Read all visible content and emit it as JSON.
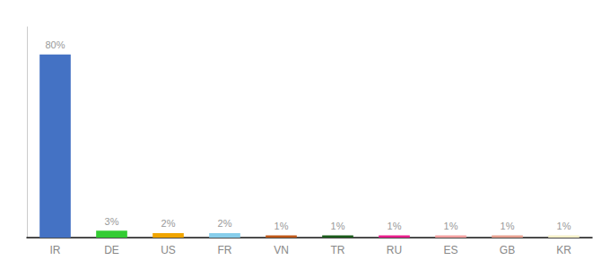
{
  "chart_data": {
    "type": "bar",
    "categories": [
      "IR",
      "DE",
      "US",
      "FR",
      "VN",
      "TR",
      "RU",
      "ES",
      "GB",
      "KR"
    ],
    "values": [
      80,
      3,
      2,
      2,
      1,
      1,
      1,
      1,
      1,
      1
    ],
    "value_labels": [
      "80%",
      "3%",
      "2%",
      "2%",
      "1%",
      "1%",
      "1%",
      "1%",
      "1%",
      "1%"
    ],
    "colors": [
      "#4472c4",
      "#33cc33",
      "#f0a500",
      "#87ceeb",
      "#c05818",
      "#1a5c1a",
      "#e91e8c",
      "#f4a0a0",
      "#e8a090",
      "#f5f0c8"
    ],
    "ylim": [
      0,
      92
    ],
    "grid": false,
    "tick_labels": "x",
    "data_labels": true
  }
}
